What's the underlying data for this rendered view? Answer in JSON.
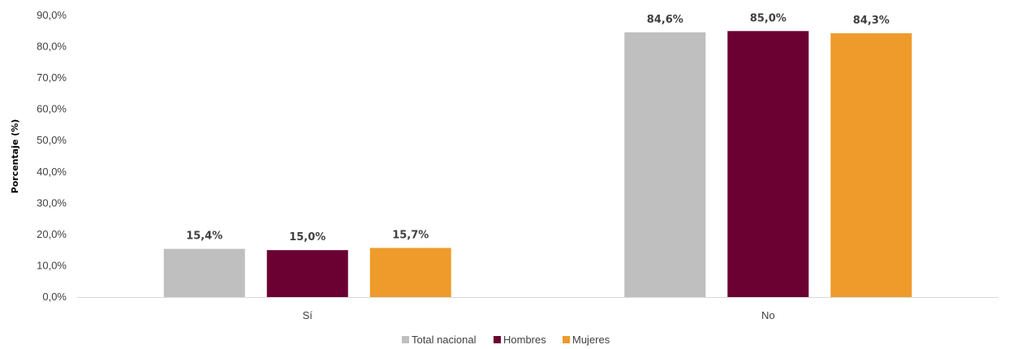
{
  "chart_data": {
    "type": "bar",
    "ylabel": "Porcentaje (%)",
    "xlabel": "",
    "ylim": [
      0,
      90
    ],
    "yticks": [
      "0,0%",
      "10,0%",
      "20,0%",
      "30,0%",
      "40,0%",
      "50,0%",
      "60,0%",
      "70,0%",
      "80,0%",
      "90,0%"
    ],
    "categories": [
      "Sí",
      "No"
    ],
    "series": [
      {
        "name": "Total nacional",
        "color": "#bfbfbf",
        "values": [
          15.4,
          84.6
        ],
        "labels": [
          "15,4%",
          "84,6%"
        ]
      },
      {
        "name": "Hombres",
        "color": "#6b0032",
        "values": [
          15.0,
          85.0
        ],
        "labels": [
          "15,0%",
          "85,0%"
        ]
      },
      {
        "name": "Mujeres",
        "color": "#ee9b2b",
        "values": [
          15.7,
          84.3
        ],
        "labels": [
          "15,7%",
          "84,3%"
        ]
      }
    ],
    "legend_position": "bottom",
    "grid": false
  }
}
